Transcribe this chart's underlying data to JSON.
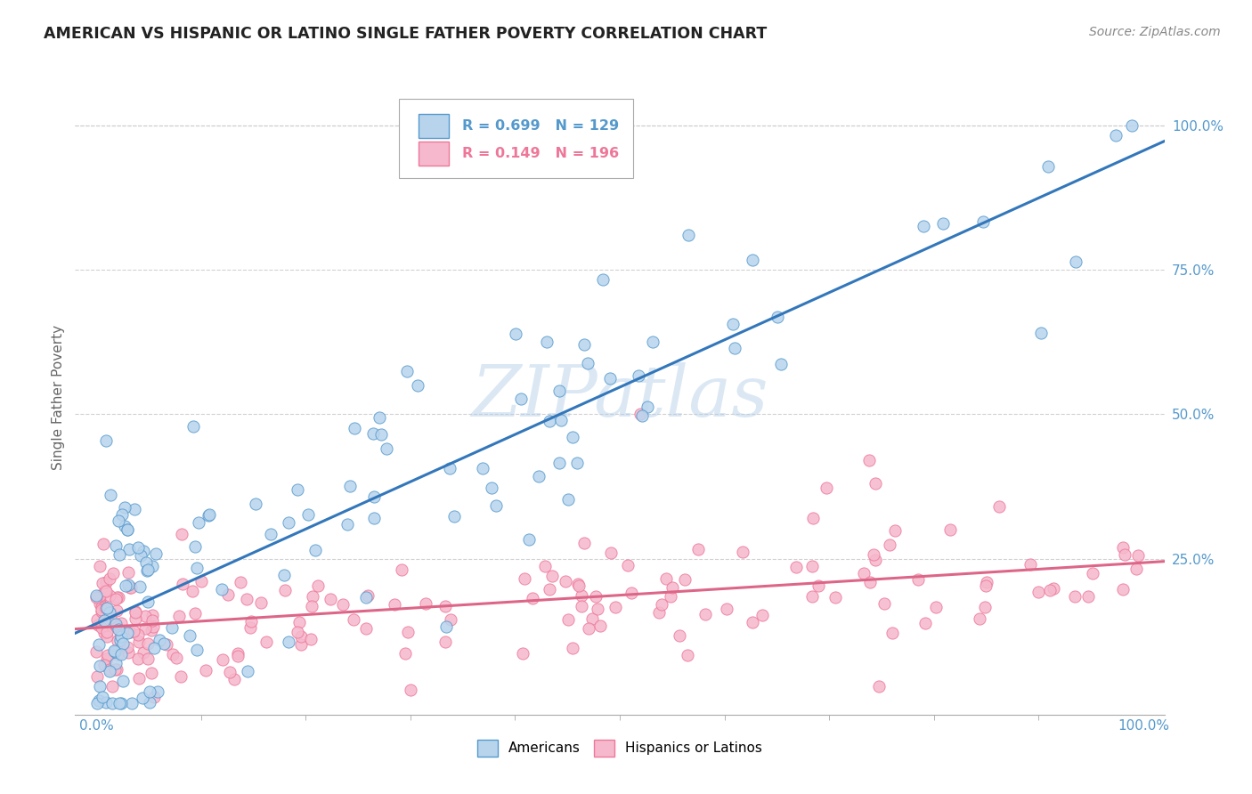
{
  "title": "AMERICAN VS HISPANIC OR LATINO SINGLE FATHER POVERTY CORRELATION CHART",
  "source": "Source: ZipAtlas.com",
  "ylabel": "Single Father Poverty",
  "legend_label_1": "Americans",
  "legend_label_2": "Hispanics or Latinos",
  "r1": 0.699,
  "n1": 129,
  "r2": 0.149,
  "n2": 196,
  "color1": "#b8d4ed",
  "color2": "#f5b8cc",
  "edge_color1": "#5599cc",
  "edge_color2": "#ee7799",
  "line_color1": "#3377bb",
  "line_color2": "#dd6688",
  "xmin": 0.0,
  "xmax": 1.0,
  "ymin": -0.02,
  "ymax": 1.08,
  "background_color": "#ffffff",
  "grid_color": "#cccccc",
  "title_color": "#222222",
  "watermark_color": "#b0cce8",
  "tick_color": "#5599cc"
}
